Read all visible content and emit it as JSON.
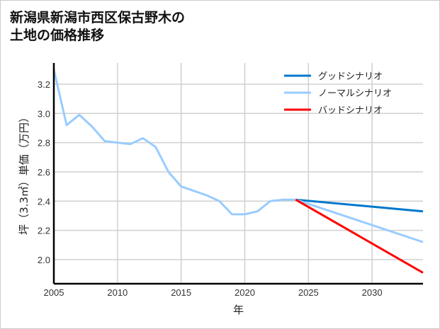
{
  "chart_data": {
    "type": "line",
    "title_lines": [
      "新潟県新潟市西区保古野木の",
      "土地の価格推移"
    ],
    "xlabel": "年",
    "ylabel": "坪（3.3㎡）単価（万円）",
    "xlim": [
      2005,
      2034
    ],
    "ylim": [
      1.835,
      3.345
    ],
    "xticks": [
      2005,
      2010,
      2015,
      2020,
      2025,
      2030
    ],
    "yticks": [
      2.0,
      2.2,
      2.4,
      2.6,
      2.8,
      3.0,
      3.2
    ],
    "grid": true,
    "legend_position": "top-right",
    "series": [
      {
        "name": "グッドシナリオ",
        "color": "#0077cc",
        "x": [
          2024,
          2034
        ],
        "values": [
          2.41,
          2.33
        ]
      },
      {
        "name": "ノーマルシナリオ",
        "color": "#99ccff",
        "x": [
          2005,
          2006,
          2007,
          2008,
          2009,
          2010,
          2011,
          2012,
          2013,
          2014,
          2015,
          2016,
          2017,
          2018,
          2019,
          2020,
          2021,
          2022,
          2023,
          2024,
          2034
        ],
        "values": [
          3.3,
          2.92,
          2.99,
          2.91,
          2.81,
          2.8,
          2.79,
          2.83,
          2.77,
          2.6,
          2.5,
          2.47,
          2.44,
          2.4,
          2.31,
          2.31,
          2.33,
          2.4,
          2.41,
          2.41,
          2.12
        ]
      },
      {
        "name": "バッドシナリオ",
        "color": "#ff0000",
        "x": [
          2024,
          2034
        ],
        "values": [
          2.41,
          1.91
        ]
      }
    ]
  }
}
